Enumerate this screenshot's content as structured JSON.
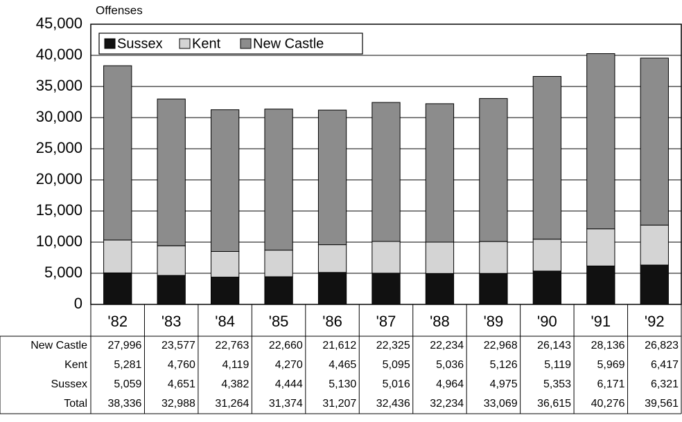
{
  "chart_data": {
    "type": "stacked_bar",
    "ylabel": "Offenses",
    "categories": [
      "'82",
      "'83",
      "'84",
      "'85",
      "'86",
      "'87",
      "'88",
      "'89",
      "'90",
      "'91",
      "'92"
    ],
    "series": [
      {
        "name": "Sussex",
        "color": "#111111",
        "values": [
          5059,
          4651,
          4382,
          4444,
          5130,
          5016,
          4964,
          4975,
          5353,
          6171,
          6321
        ],
        "value_labels": [
          "5,059",
          "4,651",
          "4,382",
          "4,444",
          "5,130",
          "5,016",
          "4,964",
          "4,975",
          "5,353",
          "6,171",
          "6,321"
        ]
      },
      {
        "name": "Kent",
        "color": "#d4d4d4",
        "values": [
          5281,
          4760,
          4119,
          4270,
          4465,
          5095,
          5036,
          5126,
          5119,
          5969,
          6417
        ],
        "value_labels": [
          "5,281",
          "4,760",
          "4,119",
          "4,270",
          "4,465",
          "5,095",
          "5,036",
          "5,126",
          "5,119",
          "5,969",
          "6,417"
        ]
      },
      {
        "name": "New Castle",
        "color": "#8c8c8c",
        "values": [
          27996,
          23577,
          22763,
          22660,
          21612,
          22325,
          22234,
          22968,
          26143,
          28136,
          26823
        ],
        "value_labels": [
          "27,996",
          "23,577",
          "22,763",
          "22,660",
          "21,612",
          "22,325",
          "22,234",
          "22,968",
          "26,143",
          "28,136",
          "26,823"
        ]
      }
    ],
    "total_label": "Total",
    "totals": [
      38336,
      32988,
      31264,
      31374,
      31207,
      32436,
      32234,
      33069,
      36615,
      40276,
      39561
    ],
    "total_value_labels": [
      "38,336",
      "32,988",
      "31,264",
      "31,374",
      "31,207",
      "32,436",
      "32,234",
      "33,069",
      "36,615",
      "40,276",
      "39,561"
    ],
    "ylim": [
      0,
      45000
    ],
    "yticks": [
      0,
      {
        "value": 5000,
        "label": "5,000"
      },
      {
        "value": 10000,
        "label": "10,000"
      },
      {
        "value": 15000,
        "label": "15,000"
      },
      {
        "value": 20000,
        "label": "20,000"
      },
      {
        "value": 25000,
        "label": "25,000"
      },
      {
        "value": 30000,
        "label": "30,000"
      },
      {
        "value": 35000,
        "label": "35,000"
      },
      {
        "value": 40000,
        "label": "40,000"
      },
      {
        "value": 45000,
        "label": "45,000"
      }
    ],
    "grid": true,
    "legend": "upper left"
  }
}
